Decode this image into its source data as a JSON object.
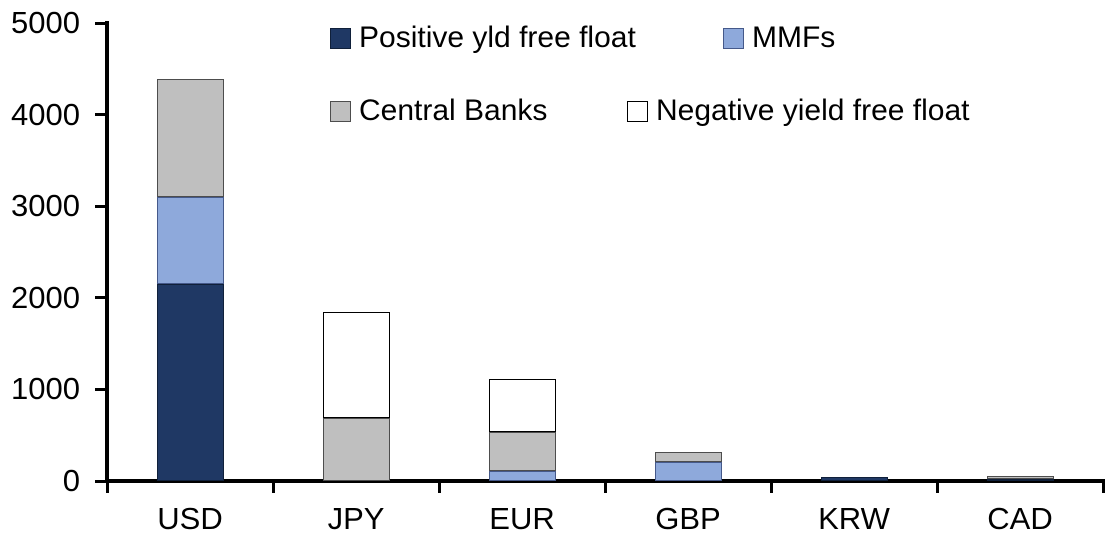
{
  "chart_data": {
    "type": "bar",
    "stacked": true,
    "title": "",
    "xlabel": "",
    "ylabel": "",
    "categories": [
      "USD",
      "JPY",
      "EUR",
      "GBP",
      "KRW",
      "CAD"
    ],
    "series": [
      {
        "name": "Positive yld free float",
        "color": "#1F3864",
        "border_color": "#10203A",
        "values": [
          2150,
          0,
          0,
          0,
          40,
          25
        ]
      },
      {
        "name": "MMFs",
        "color": "#8EA9DB",
        "border_color": "#45598A",
        "values": [
          950,
          0,
          110,
          210,
          0,
          0
        ]
      },
      {
        "name": "Central Banks",
        "color": "#BFBFBF",
        "border_color": "#4D4D4D",
        "values": [
          1290,
          690,
          425,
          110,
          0,
          30
        ]
      },
      {
        "name": "Negative yield free float",
        "color": "#FFFFFF",
        "border_color": "#000000",
        "values": [
          0,
          1155,
          580,
          0,
          0,
          0
        ]
      }
    ],
    "totals": [
      4390,
      1845,
      1115,
      320,
      40,
      55
    ],
    "ylim": [
      0,
      5000
    ],
    "yticks": [
      0,
      1000,
      2000,
      3000,
      4000,
      5000
    ],
    "grid": false,
    "legend_position": "top",
    "axis_color": "#000000",
    "text_color": "#000000",
    "background": "#FFFFFF"
  }
}
